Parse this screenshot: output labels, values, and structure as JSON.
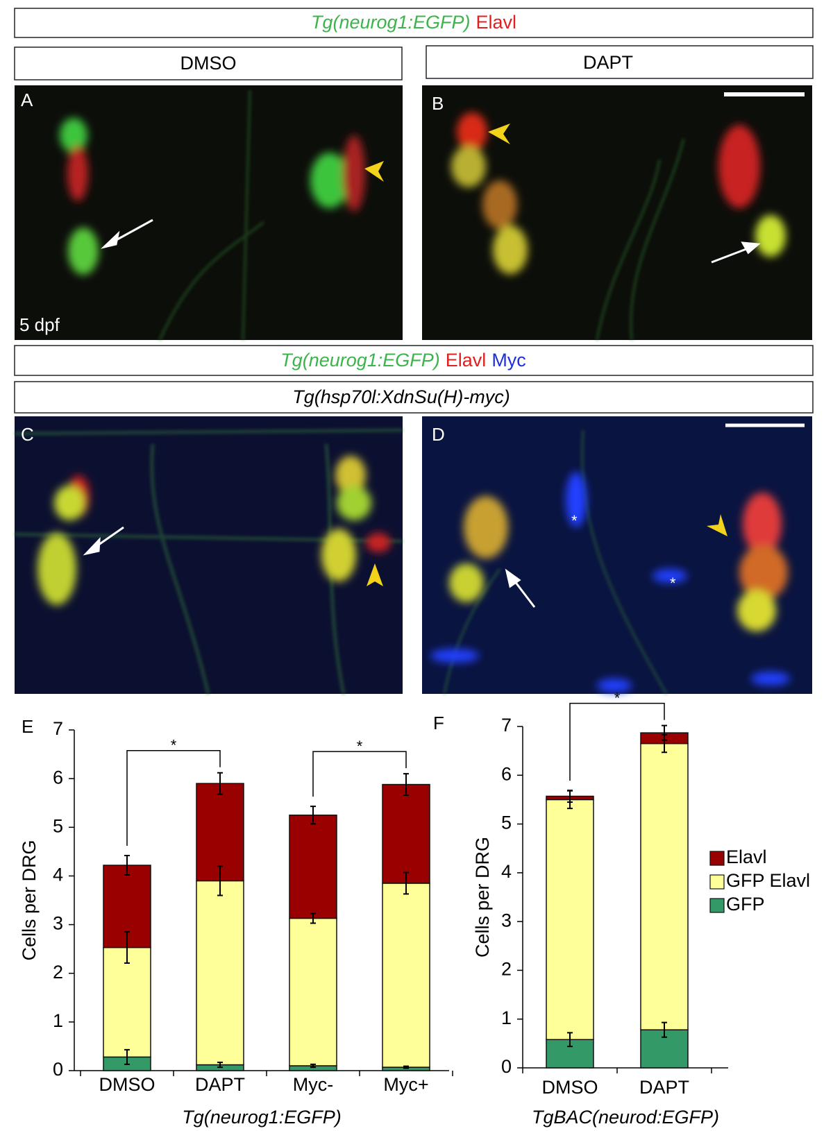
{
  "figure": {
    "header1": {
      "green": "Tg(neurog1:EGFP)",
      "red": "Elavl"
    },
    "condition_left": "DMSO",
    "condition_right": "DAPT",
    "panels": [
      "A",
      "B",
      "C",
      "D"
    ],
    "stage": "5 dpf",
    "header2": {
      "green": "Tg(neurog1:EGFP)",
      "red": "Elavl",
      "blue": "Myc"
    },
    "header3": "Tg(hsp70l:XdnSu(H)-myc)",
    "asterisks": [
      "*",
      "*"
    ]
  },
  "chart_data": [
    {
      "type": "stacked-bar",
      "panel": "E",
      "ylabel": "Cells per DRG",
      "xlabel": "Tg(neurog1:EGFP)",
      "categories": [
        "DMSO",
        "DAPT",
        "Myc-",
        "Myc+"
      ],
      "ylim": [
        0,
        7
      ],
      "yticks": [
        0,
        1,
        2,
        3,
        4,
        5,
        6,
        7
      ],
      "series": [
        {
          "name": "GFP",
          "color": "#339966",
          "values": [
            0.28,
            0.12,
            0.1,
            0.07
          ],
          "errors": [
            0.15,
            0.05,
            0.03,
            0.02
          ]
        },
        {
          "name": "GFP Elavl",
          "color": "#ffff99",
          "values": [
            2.25,
            3.78,
            3.03,
            3.78
          ],
          "errors": [
            0.32,
            0.3,
            0.1,
            0.22
          ]
        },
        {
          "name": "Elavl",
          "color": "#990000",
          "values": [
            1.69,
            2.0,
            2.12,
            2.03
          ],
          "errors": [
            0.2,
            0.22,
            0.18,
            0.22
          ]
        }
      ],
      "significance": [
        {
          "between": [
            0,
            1
          ],
          "label": "*"
        },
        {
          "between": [
            2,
            3
          ],
          "label": "*"
        }
      ],
      "legend": false
    },
    {
      "type": "stacked-bar",
      "panel": "F",
      "ylabel": "Cells per DRG",
      "xlabel": "TgBAC(neurod:EGFP)",
      "categories": [
        "DMSO",
        "DAPT"
      ],
      "ylim": [
        0,
        7
      ],
      "yticks": [
        0,
        1,
        2,
        3,
        4,
        5,
        6,
        7
      ],
      "series": [
        {
          "name": "GFP",
          "color": "#339966",
          "values": [
            0.58,
            0.78
          ],
          "errors": [
            0.14,
            0.15
          ]
        },
        {
          "name": "GFP Elavl",
          "color": "#ffff99",
          "values": [
            4.92,
            5.87
          ],
          "errors": [
            0.18,
            0.18
          ]
        },
        {
          "name": "Elavl",
          "color": "#990000",
          "values": [
            0.07,
            0.22
          ],
          "errors": [
            0.12,
            0.15
          ]
        }
      ],
      "significance": [
        {
          "between": [
            0,
            1
          ],
          "label": "*"
        }
      ],
      "legend": "right"
    }
  ]
}
